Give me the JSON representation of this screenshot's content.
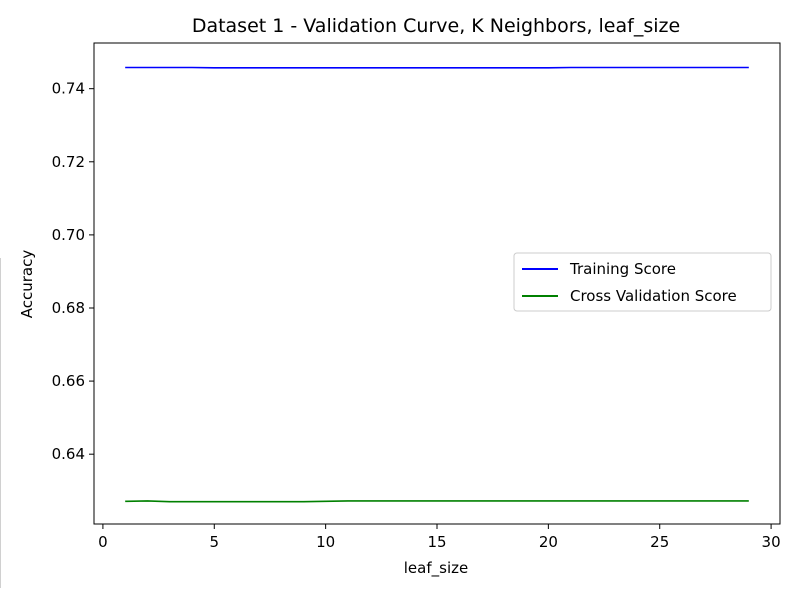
{
  "chart_data": {
    "type": "line",
    "title": "Dataset 1 - Validation Curve, K Neighbors, leaf_size",
    "xlabel": "leaf_size",
    "ylabel": "Accuracy",
    "xlim": [
      -0.4,
      30.4
    ],
    "ylim": [
      0.6209,
      0.7525
    ],
    "xticks": [
      0,
      5,
      10,
      15,
      20,
      25,
      30
    ],
    "yticks": [
      0.64,
      0.66,
      0.68,
      0.7,
      0.72,
      0.74
    ],
    "ytick_labels": [
      "0.64",
      "0.66",
      "0.68",
      "0.70",
      "0.72",
      "0.74"
    ],
    "grid": false,
    "legend_position": "center-right",
    "x": [
      1,
      2,
      3,
      4,
      5,
      6,
      7,
      8,
      9,
      10,
      11,
      12,
      13,
      14,
      15,
      16,
      17,
      18,
      19,
      20,
      21,
      22,
      23,
      24,
      25,
      26,
      27,
      28,
      29
    ],
    "series": [
      {
        "name": "Training Score",
        "color": "#0000ff",
        "values": [
          0.7458,
          0.7458,
          0.7458,
          0.7458,
          0.7457,
          0.7457,
          0.7457,
          0.7457,
          0.7457,
          0.7457,
          0.7457,
          0.7457,
          0.7457,
          0.7457,
          0.7457,
          0.7457,
          0.7457,
          0.7457,
          0.7457,
          0.7457,
          0.7458,
          0.7458,
          0.7458,
          0.7458,
          0.7458,
          0.7458,
          0.7458,
          0.7458,
          0.7458
        ]
      },
      {
        "name": "Cross Validation Score",
        "color": "#008000",
        "values": [
          0.6271,
          0.6272,
          0.627,
          0.627,
          0.627,
          0.627,
          0.627,
          0.627,
          0.627,
          0.6271,
          0.6272,
          0.6272,
          0.6272,
          0.6272,
          0.6272,
          0.6272,
          0.6272,
          0.6272,
          0.6272,
          0.6272,
          0.6272,
          0.6272,
          0.6272,
          0.6272,
          0.6272,
          0.6272,
          0.6272,
          0.6272,
          0.6272
        ]
      }
    ]
  }
}
